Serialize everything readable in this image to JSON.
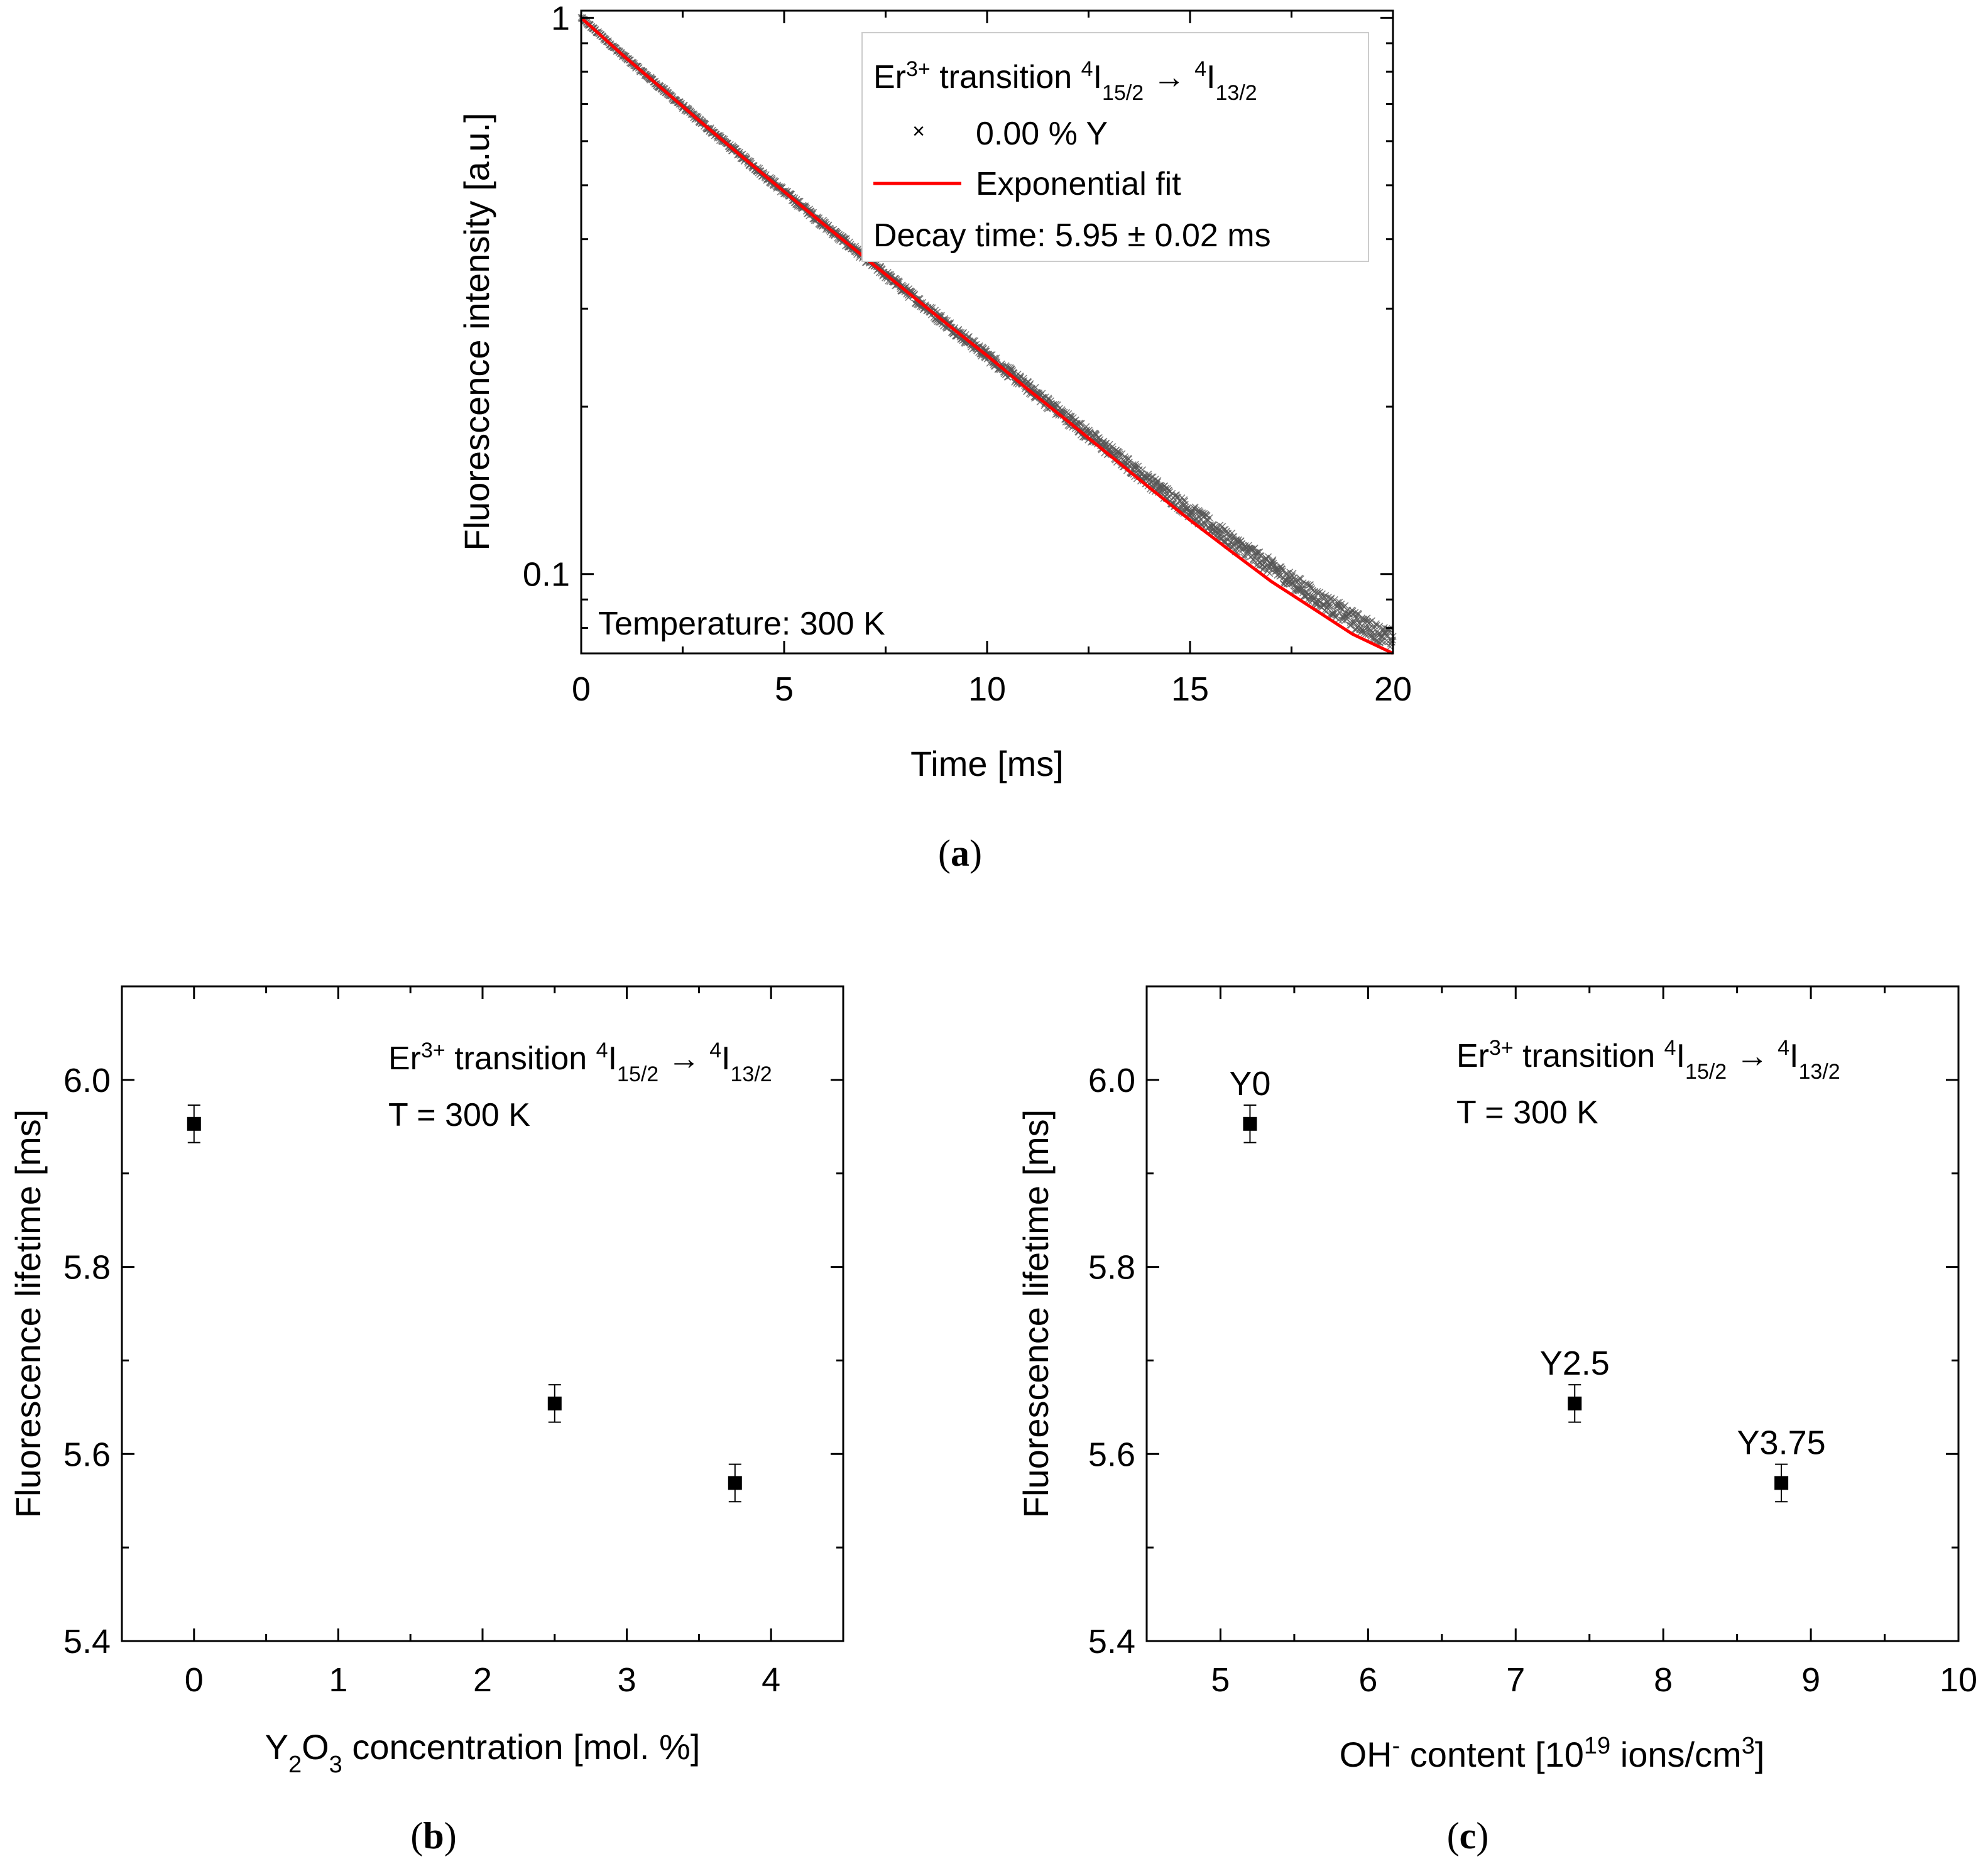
{
  "chart_data": [
    {
      "id": "a",
      "type": "scatter",
      "caption": "(a)",
      "caption_letter": "a",
      "xlabel": "Time [ms]",
      "ylabel": "Fluorescence intensity [a.u.]",
      "xlim": [
        0,
        20
      ],
      "ylim": [
        0.072,
        1.03
      ],
      "y_scale": "log",
      "x_ticks": [
        0,
        5,
        10,
        15,
        20
      ],
      "x_tick_labels": [
        "0",
        "5",
        "10",
        "15",
        "20"
      ],
      "y_ticks": [
        0.1,
        1
      ],
      "y_tick_labels": [
        "0.1",
        "1"
      ],
      "legend_position": "top-right",
      "legend": {
        "header": {
          "prefix": "Er",
          "sup1": "3+",
          "middle": " transition ",
          "sup2": "4",
          "i1": "I",
          "sub1": "15/2",
          "arrow": " → ",
          "sup3": "4",
          "i2": "I",
          "sub2": "13/2"
        },
        "series_data_name": "0.00 % Y",
        "series_fit_name": "Exponential fit",
        "decay_text": "Decay time: 5.95 ± 0.02 ms"
      },
      "annotation": "Temperature: 300 K",
      "series": [
        {
          "name": "0.00 % Y",
          "kind": "scatter",
          "color": "#555555",
          "x": [
            0,
            1,
            2,
            3,
            4,
            5,
            6,
            7,
            8,
            9,
            10,
            11,
            12,
            13,
            14,
            15,
            16,
            17,
            18,
            19,
            20
          ],
          "y": [
            1.0,
            0.86,
            0.745,
            0.645,
            0.56,
            0.487,
            0.424,
            0.37,
            0.323,
            0.282,
            0.247,
            0.217,
            0.19,
            0.167,
            0.147,
            0.13,
            0.115,
            0.103,
            0.092,
            0.083,
            0.076
          ]
        },
        {
          "name": "Exponential fit",
          "kind": "line",
          "color": "#ff0000",
          "x": [
            0,
            1,
            2,
            3,
            4,
            5,
            6,
            7,
            8,
            9,
            10,
            11,
            12,
            13,
            14,
            15,
            16,
            17,
            18,
            19,
            20
          ],
          "y": [
            1.0,
            0.86,
            0.745,
            0.645,
            0.56,
            0.487,
            0.424,
            0.37,
            0.323,
            0.282,
            0.247,
            0.215,
            0.188,
            0.164,
            0.143,
            0.125,
            0.11,
            0.097,
            0.087,
            0.078,
            0.072
          ]
        }
      ]
    },
    {
      "id": "b",
      "type": "scatter",
      "caption": "(b)",
      "caption_letter": "b",
      "xlabel": {
        "prefix": "Y",
        "sub1": "2",
        "mid": "O",
        "sub2": "3",
        "suffix": " concentration [mol. %]"
      },
      "ylabel": "Fluorescence lifetime [ms]",
      "xlim": [
        -0.5,
        4.5
      ],
      "ylim": [
        5.4,
        6.1
      ],
      "x_ticks": [
        0,
        1,
        2,
        3,
        4
      ],
      "x_tick_labels": [
        "0",
        "1",
        "2",
        "3",
        "4"
      ],
      "y_ticks": [
        5.4,
        5.6,
        5.8,
        6.0
      ],
      "y_tick_labels": [
        "5.4",
        "5.6",
        "5.8",
        "6.0"
      ],
      "annotation_lines": [
        {
          "prefix": "Er",
          "sup1": "3+",
          "middle": " transition ",
          "sup2": "4",
          "i1": "I",
          "sub1": "15/2",
          "arrow": " → ",
          "sup3": "4",
          "i2": "I",
          "sub2": "13/2"
        },
        "T = 300 K"
      ],
      "series": [
        {
          "x": [
            0,
            2.5,
            3.75
          ],
          "y": [
            5.953,
            5.654,
            5.569
          ],
          "yerr": [
            0.02,
            0.02,
            0.02
          ]
        }
      ]
    },
    {
      "id": "c",
      "type": "scatter",
      "caption": "(c)",
      "caption_letter": "c",
      "xlabel": {
        "prefix": "OH",
        "sup1": "-",
        "mid": " content [10",
        "sup2": "19",
        "suffix": " ions/cm",
        "sup3": "3",
        "end": "]"
      },
      "ylabel": "Fluorescence lifetime [ms]",
      "xlim": [
        4.5,
        10
      ],
      "ylim": [
        5.4,
        6.1
      ],
      "x_ticks": [
        5,
        6,
        7,
        8,
        9,
        10
      ],
      "x_tick_labels": [
        "5",
        "6",
        "7",
        "8",
        "9",
        "10"
      ],
      "y_ticks": [
        5.4,
        5.6,
        5.8,
        6.0
      ],
      "y_tick_labels": [
        "5.4",
        "5.6",
        "5.8",
        "6.0"
      ],
      "annotation_lines": [
        {
          "prefix": "Er",
          "sup1": "3+",
          "middle": " transition ",
          "sup2": "4",
          "i1": "I",
          "sub1": "15/2",
          "arrow": " → ",
          "sup3": "4",
          "i2": "I",
          "sub2": "13/2"
        },
        "T = 300 K"
      ],
      "series": [
        {
          "x": [
            5.2,
            7.4,
            8.8
          ],
          "y": [
            5.953,
            5.654,
            5.569
          ],
          "yerr": [
            0.02,
            0.02,
            0.02
          ],
          "labels": [
            "Y0",
            "Y2.5",
            "Y3.75"
          ]
        }
      ]
    }
  ]
}
